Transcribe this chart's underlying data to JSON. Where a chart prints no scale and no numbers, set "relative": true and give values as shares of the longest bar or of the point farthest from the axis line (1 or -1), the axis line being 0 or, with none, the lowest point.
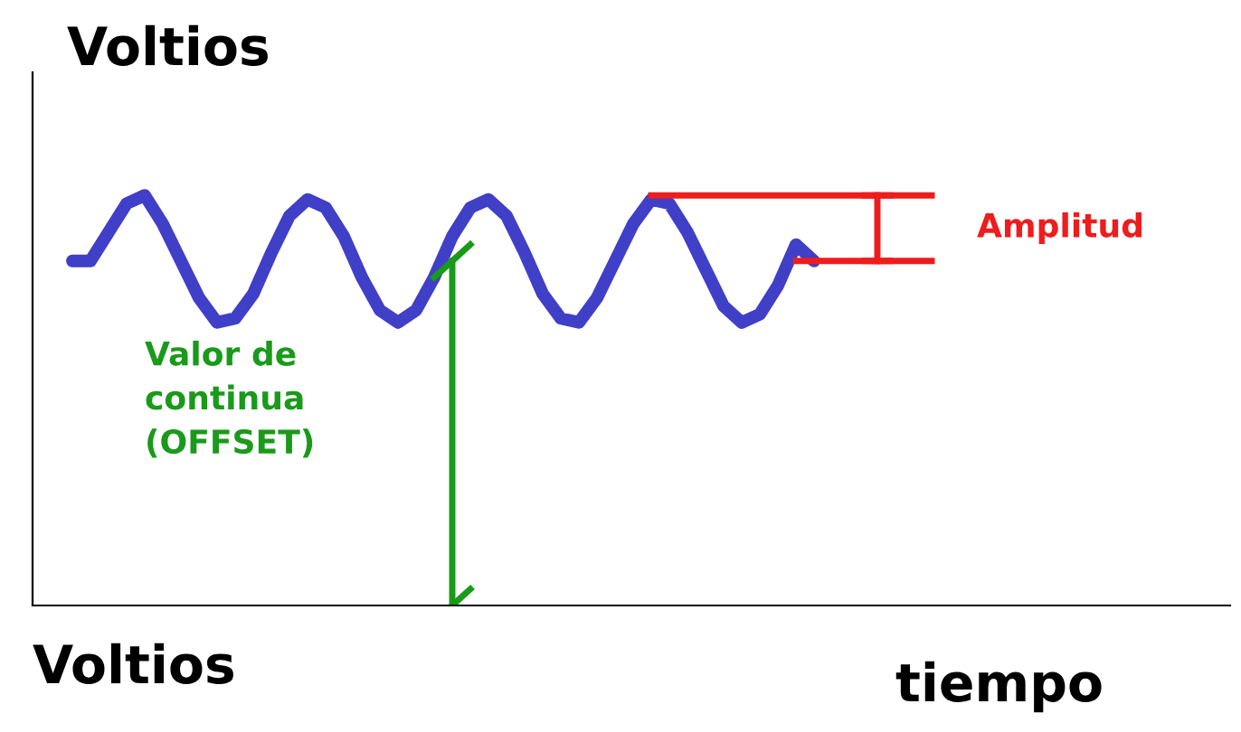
{
  "chart_data": {
    "type": "line",
    "relative": true,
    "ylabel": "Voltios",
    "xlabel": "tiempo",
    "categories": [
      null,
      null,
      null,
      null,
      null,
      null,
      null,
      null,
      null,
      null,
      null,
      null,
      null,
      null,
      null,
      null,
      null,
      null,
      null,
      null,
      null,
      null,
      null,
      null,
      null,
      null,
      null,
      null,
      null,
      null,
      null,
      null,
      null,
      null,
      null,
      null,
      null,
      null,
      null,
      null,
      null,
      null
    ],
    "series": [
      {
        "color": "#3f3fc8",
        "values": [
          0.84,
          0.84,
          0.91,
          0.98,
          1.0,
          0.93,
          0.84,
          0.75,
          0.69,
          0.7,
          0.76,
          0.86,
          0.95,
          0.99,
          0.97,
          0.9,
          0.8,
          0.72,
          0.69,
          0.72,
          0.8,
          0.9,
          0.97,
          0.99,
          0.95,
          0.86,
          0.76,
          0.7,
          0.69,
          0.75,
          0.84,
          0.93,
          0.99,
          0.98,
          0.91,
          0.82,
          0.73,
          0.69,
          0.71,
          0.78,
          0.88,
          0.84
        ]
      }
    ],
    "annotations": [
      "Amplitud",
      "Valor de\ncontinua\n(OFFSET)",
      "Voltios"
    ],
    "grid": false,
    "legend": false
  }
}
